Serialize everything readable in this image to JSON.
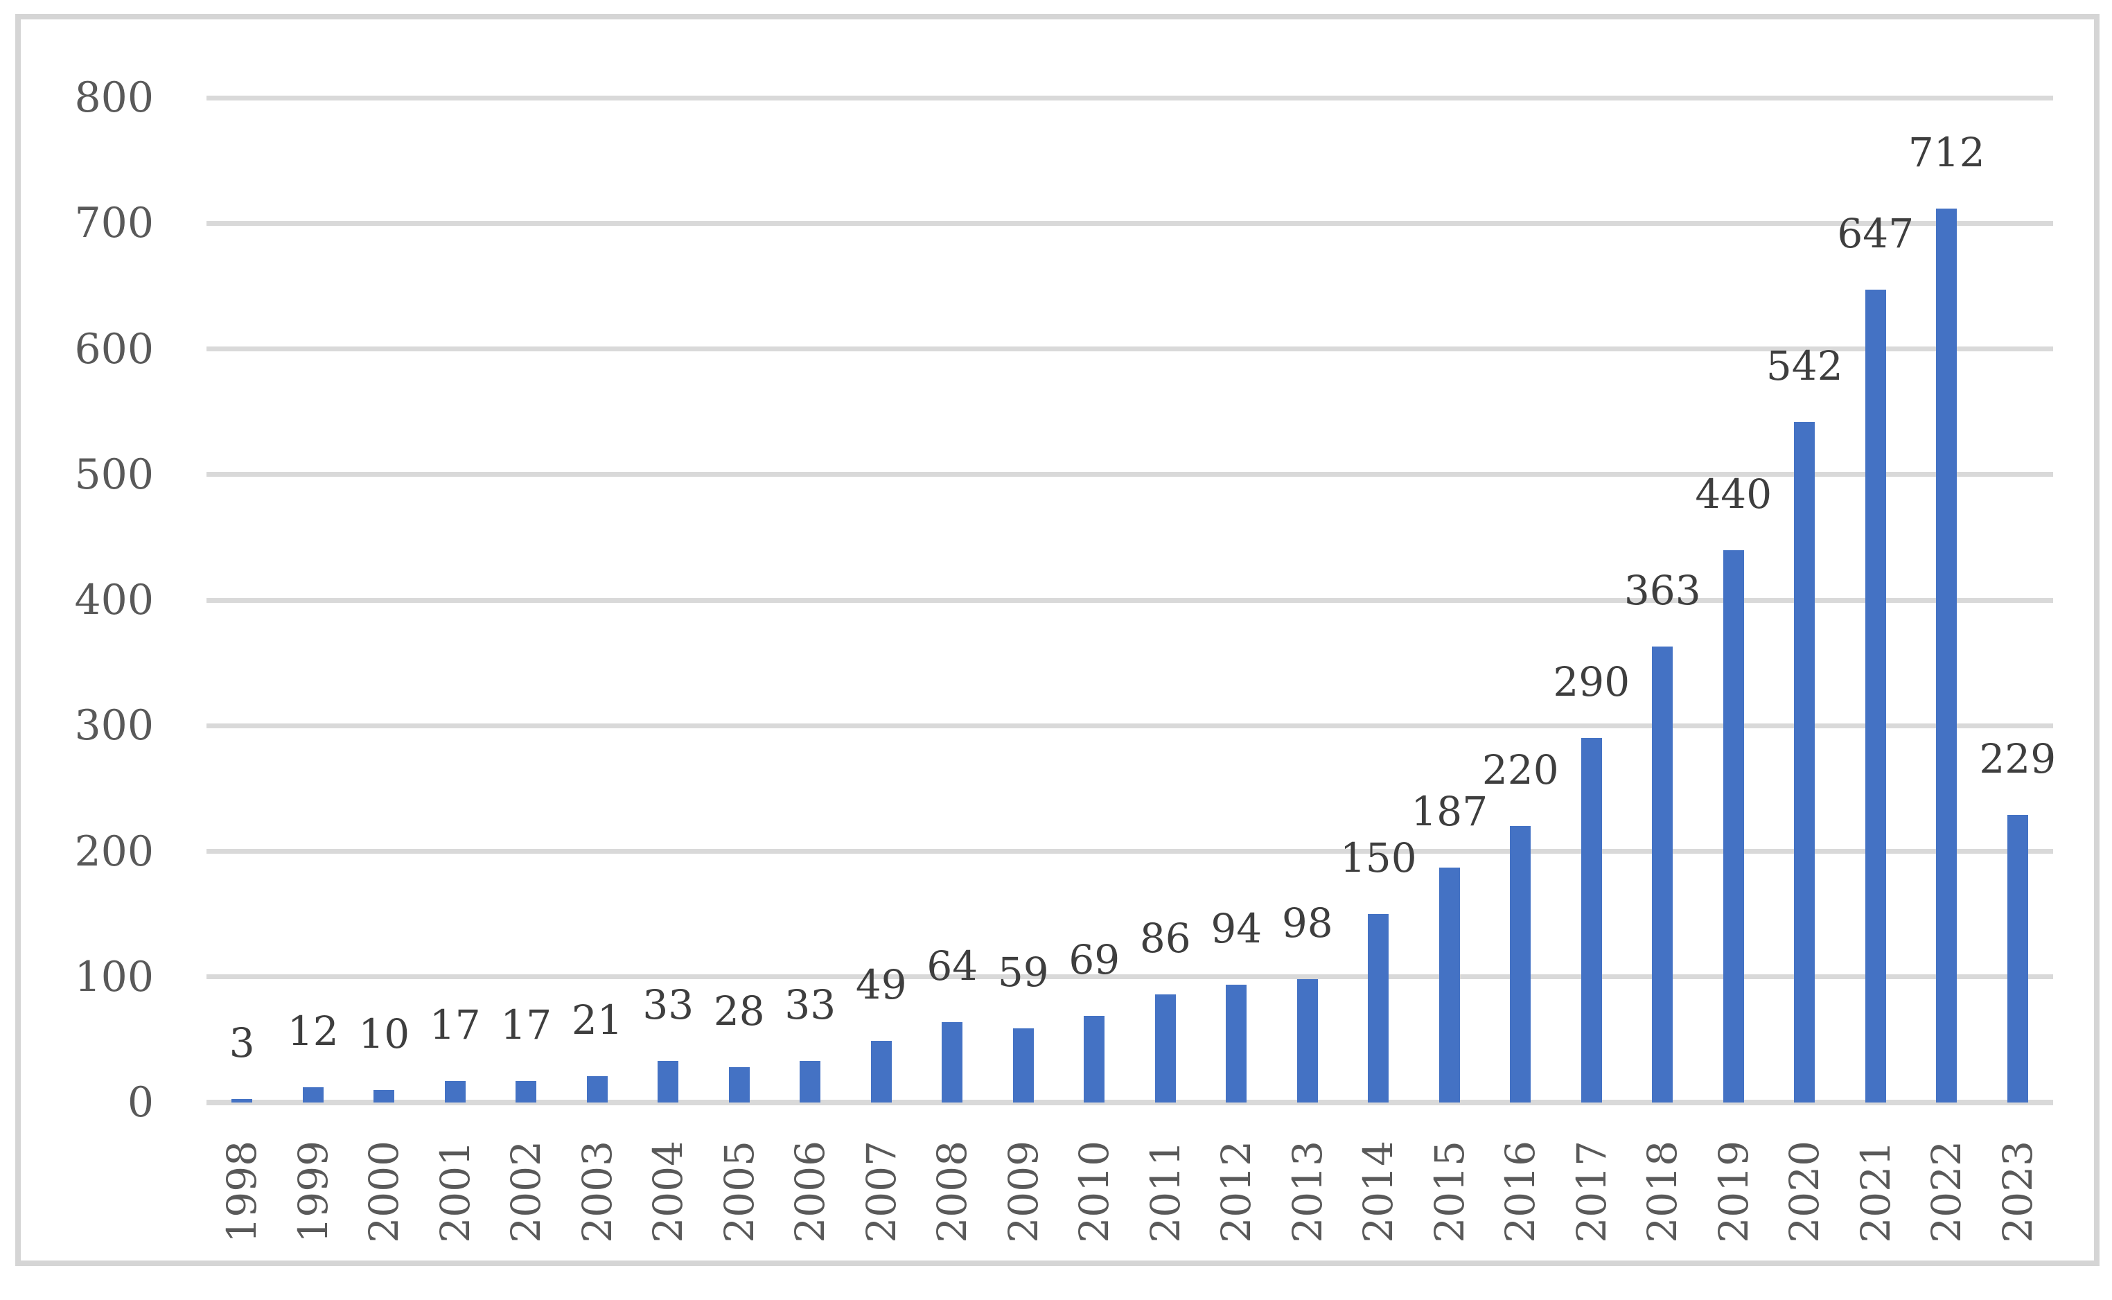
{
  "chart_data": {
    "type": "bar",
    "title": "",
    "xlabel": "",
    "ylabel": "",
    "categories": [
      "1998",
      "1999",
      "2000",
      "2001",
      "2002",
      "2003",
      "2004",
      "2005",
      "2006",
      "2007",
      "2008",
      "2009",
      "2010",
      "2011",
      "2012",
      "2013",
      "2014",
      "2015",
      "2016",
      "2017",
      "2018",
      "2019",
      "2020",
      "2021",
      "2022",
      "2023"
    ],
    "values": [
      3,
      12,
      10,
      17,
      17,
      21,
      33,
      28,
      33,
      49,
      64,
      59,
      69,
      86,
      94,
      98,
      150,
      187,
      220,
      290,
      363,
      440,
      542,
      647,
      712,
      229
    ],
    "ylim": [
      0,
      800
    ],
    "ytick_interval": 100,
    "yticks": [
      0,
      100,
      200,
      300,
      400,
      500,
      600,
      700,
      800
    ],
    "grid": "horizontal",
    "legend": "none",
    "data_label_position": "outside-end",
    "x_tick_rotation_degrees": -90,
    "colors": {
      "bar": "#4472C4",
      "gridline": "#D9D9D9",
      "axis_tick_label": "#595959",
      "data_label": "#3E3E3E",
      "frame_border": "#D5D5D5",
      "background": "#FFFFFF"
    }
  }
}
